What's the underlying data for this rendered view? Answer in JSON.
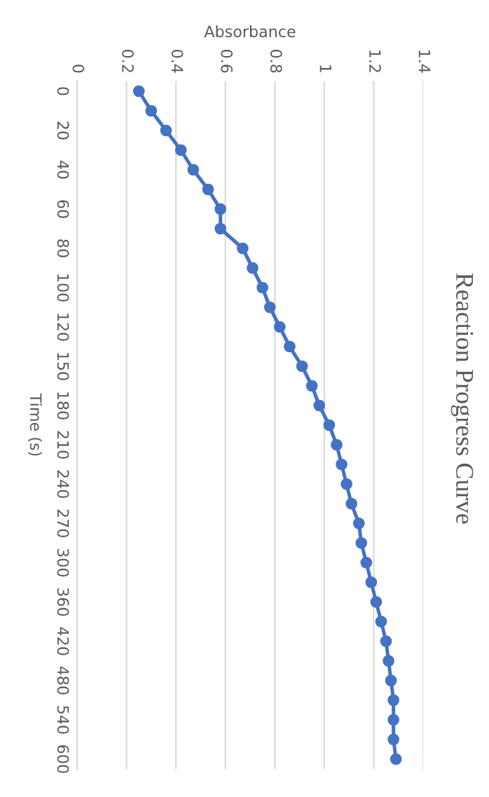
{
  "chart_data": {
    "type": "line",
    "orientation": "horizontal",
    "title": "Reaction Progress Curve",
    "xlabel": "Absorbance",
    "ylabel": "Time (s)",
    "categories": [
      "0",
      null,
      "20",
      null,
      "40",
      null,
      "60",
      null,
      "80",
      null,
      "100",
      null,
      "120",
      null,
      "150",
      null,
      "180",
      null,
      "210",
      null,
      "240",
      null,
      "270",
      null,
      "300",
      null,
      "360",
      null,
      "420",
      null,
      "480",
      null,
      "540",
      null,
      "600"
    ],
    "series": [
      {
        "color": "#4472c4",
        "values": [
          0.25,
          0.3,
          0.36,
          0.42,
          0.47,
          0.53,
          0.58,
          0.58,
          0.67,
          0.71,
          0.75,
          0.78,
          0.82,
          0.86,
          0.91,
          0.95,
          0.98,
          1.02,
          1.05,
          1.07,
          1.09,
          1.11,
          1.14,
          1.15,
          1.17,
          1.19,
          1.21,
          1.23,
          1.25,
          1.26,
          1.27,
          1.28,
          1.28,
          1.28,
          1.29
        ]
      }
    ],
    "xlim": [
      0,
      1.4
    ],
    "xticks": [
      0,
      0.2,
      0.4,
      0.6,
      0.8,
      1,
      1.2,
      1.4
    ],
    "grid": "x",
    "marker": "circle",
    "line_style": "solid",
    "legend": false
  }
}
